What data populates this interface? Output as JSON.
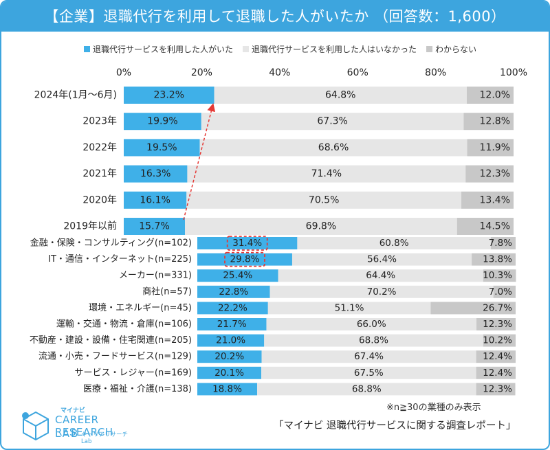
{
  "header": {
    "title": "【企業】退職代行を利用して退職した人がいたか （回答数：1,600）"
  },
  "chart_data": {
    "type": "bar",
    "orientation": "horizontal",
    "stacked": "100%",
    "legend_position": "top",
    "series": [
      {
        "name": "退職代行サービスを利用した人がいた",
        "color": "#3fb0e8",
        "label_color": "#222"
      },
      {
        "name": "退職代行サービスを利用した人はいなかった",
        "color": "#e6e6e6",
        "label_color": "#222"
      },
      {
        "name": "わからない",
        "color": "#c8c8c8",
        "label_color": "#222"
      }
    ],
    "x_ticks": [
      "0%",
      "20%",
      "40%",
      "60%",
      "80%",
      "100%"
    ],
    "xlim": [
      0,
      100
    ],
    "groups": [
      {
        "rows": [
          {
            "label": "2024年(1月～6月)",
            "values": [
              23.2,
              64.8,
              12.0
            ],
            "labels": [
              "23.2%",
              "64.8%",
              "12.0%"
            ]
          },
          {
            "label": "2023年",
            "values": [
              19.9,
              67.3,
              12.8
            ],
            "labels": [
              "19.9%",
              "67.3%",
              "12.8%"
            ]
          },
          {
            "label": "2022年",
            "values": [
              19.5,
              68.6,
              11.9
            ],
            "labels": [
              "19.5%",
              "68.6%",
              "11.9%"
            ]
          },
          {
            "label": "2021年",
            "values": [
              16.3,
              71.4,
              12.3
            ],
            "labels": [
              "16.3%",
              "71.4%",
              "12.3%"
            ]
          },
          {
            "label": "2020年",
            "values": [
              16.1,
              70.5,
              13.4
            ],
            "labels": [
              "16.1%",
              "70.5%",
              "13.4%"
            ]
          },
          {
            "label": "2019年以前",
            "values": [
              15.7,
              69.8,
              14.5
            ],
            "labels": [
              "15.7%",
              "69.8%",
              "14.5%"
            ]
          }
        ],
        "annotation": "dashed red arrow rising from 2019年以前 to 2024年(1月～6月)"
      },
      {
        "rows": [
          {
            "label": "金融・保険・コンサルティング(n=102)",
            "values": [
              31.4,
              60.8,
              7.8
            ],
            "labels": [
              "31.4%",
              "60.8%",
              "7.8%"
            ],
            "highlight": true
          },
          {
            "label": "IT・通信・インターネット(n=225)",
            "values": [
              29.8,
              56.4,
              13.8
            ],
            "labels": [
              "29.8%",
              "56.4%",
              "13.8%"
            ],
            "highlight": true
          },
          {
            "label": "メーカー(n=331)",
            "values": [
              25.4,
              64.4,
              10.3
            ],
            "labels": [
              "25.4%",
              "64.4%",
              "10.3%"
            ]
          },
          {
            "label": "商社(n=57)",
            "values": [
              22.8,
              70.2,
              7.0
            ],
            "labels": [
              "22.8%",
              "70.2%",
              "7.0%"
            ]
          },
          {
            "label": "環境・エネルギー(n=45)",
            "values": [
              22.2,
              51.1,
              26.7
            ],
            "labels": [
              "22.2%",
              "51.1%",
              "26.7%"
            ]
          },
          {
            "label": "運輸・交通・物流・倉庫(n=106)",
            "values": [
              21.7,
              66.0,
              12.3
            ],
            "labels": [
              "21.7%",
              "66.0%",
              "12.3%"
            ]
          },
          {
            "label": "不動産・建設・設備・住宅関連(n=205)",
            "values": [
              21.0,
              68.8,
              10.2
            ],
            "labels": [
              "21.0%",
              "68.8%",
              "10.2%"
            ]
          },
          {
            "label": "流通・小売・フードサービス(n=129)",
            "values": [
              20.2,
              67.4,
              12.4
            ],
            "labels": [
              "20.2%",
              "67.4%",
              "12.4%"
            ]
          },
          {
            "label": "サービス・レジャー(n=169)",
            "values": [
              20.1,
              67.5,
              12.4
            ],
            "labels": [
              "20.1%",
              "67.5%",
              "12.4%"
            ]
          },
          {
            "label": "医療・福祉・介護(n=138)",
            "values": [
              18.8,
              68.8,
              12.3
            ],
            "labels": [
              "18.8%",
              "68.8%",
              "12.3%"
            ]
          }
        ]
      }
    ]
  },
  "footer": {
    "note": "※n≧30の業種のみ表示",
    "report": "「マイナビ 退職代行サービスに関する調査レポート」",
    "logo_top": "マイナビ",
    "logo_main": "CAREER RESEARCH",
    "logo_lab": "LAB",
    "logo_sub": "キャリアリサーチLab"
  },
  "colors": {
    "accent": "#3da5de",
    "highlight": "#e53935"
  }
}
